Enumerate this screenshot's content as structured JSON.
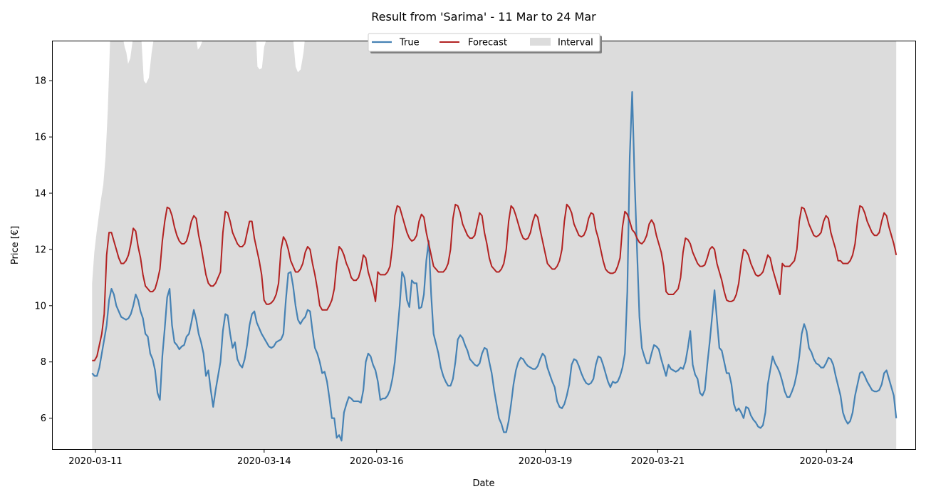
{
  "chart_data": {
    "type": "line",
    "title": "Result from 'Sarima' - 11 Mar to 24 Mar",
    "xlabel": "Date",
    "ylabel": "Price [€]",
    "x_tick_labels": [
      "2020-03-11",
      "2020-03-14",
      "2020-03-16",
      "2020-03-19",
      "2020-03-21",
      "2020-03-24"
    ],
    "y_ticks": [
      6,
      8,
      10,
      12,
      14,
      16,
      18
    ],
    "xlim_days": [
      10.24,
      25.58
    ],
    "x_start_day": 10.94,
    "x_step_days": 0.04167,
    "ylim": [
      4.9,
      19.4
    ],
    "grid": false,
    "legend": {
      "placement": "top-center",
      "entries": [
        "True",
        "Forecast",
        "Interval"
      ]
    },
    "colors": {
      "true": "#4682b4",
      "forecast": "#b22222",
      "interval": "#dcdcdc"
    },
    "series": [
      {
        "name": "True",
        "values": [
          7.6,
          7.5,
          7.5,
          7.8,
          8.3,
          8.8,
          9.3,
          10.2,
          10.6,
          10.4,
          10.0,
          9.8,
          9.6,
          9.55,
          9.5,
          9.55,
          9.7,
          10.0,
          10.4,
          10.2,
          9.8,
          9.55,
          9.0,
          8.9,
          8.3,
          8.1,
          7.7,
          6.9,
          6.65,
          8.2,
          9.2,
          10.3,
          10.6,
          9.3,
          8.7,
          8.6,
          8.45,
          8.55,
          8.6,
          8.9,
          9.0,
          9.4,
          9.85,
          9.5,
          9.0,
          8.7,
          8.3,
          7.5,
          7.7,
          7.0,
          6.4,
          7.0,
          7.5,
          8.0,
          9.1,
          9.7,
          9.65,
          9.0,
          8.5,
          8.7,
          8.1,
          7.9,
          7.8,
          8.1,
          8.6,
          9.3,
          9.7,
          9.8,
          9.4,
          9.2,
          9.0,
          8.85,
          8.7,
          8.55,
          8.5,
          8.55,
          8.7,
          8.75,
          8.8,
          9.0,
          10.2,
          11.15,
          11.2,
          10.7,
          10.0,
          9.5,
          9.35,
          9.5,
          9.6,
          9.85,
          9.8,
          9.1,
          8.5,
          8.3,
          8.0,
          7.6,
          7.65,
          7.3,
          6.7,
          6.0,
          6.0,
          5.3,
          5.4,
          5.2,
          6.2,
          6.5,
          6.75,
          6.7,
          6.6,
          6.6,
          6.6,
          6.55,
          7.0,
          8.0,
          8.3,
          8.2,
          7.9,
          7.7,
          7.3,
          6.65,
          6.7,
          6.7,
          6.8,
          7.0,
          7.4,
          8.0,
          9.0,
          10.0,
          11.2,
          11.0,
          10.2,
          9.95,
          10.9,
          10.8,
          10.8,
          9.9,
          9.95,
          10.4,
          11.6,
          12.3,
          10.4,
          9.0,
          8.65,
          8.3,
          7.8,
          7.5,
          7.3,
          7.15,
          7.15,
          7.4,
          8.0,
          8.8,
          8.95,
          8.85,
          8.6,
          8.4,
          8.1,
          8.0,
          7.9,
          7.85,
          7.95,
          8.3,
          8.5,
          8.45,
          8.0,
          7.6,
          7.0,
          6.5,
          6.0,
          5.8,
          5.5,
          5.5,
          5.9,
          6.5,
          7.2,
          7.7,
          8.0,
          8.15,
          8.1,
          7.95,
          7.85,
          7.8,
          7.75,
          7.75,
          7.85,
          8.1,
          8.3,
          8.2,
          7.8,
          7.55,
          7.3,
          7.1,
          6.6,
          6.4,
          6.35,
          6.5,
          6.8,
          7.2,
          7.9,
          8.1,
          8.05,
          7.85,
          7.6,
          7.4,
          7.25,
          7.2,
          7.25,
          7.4,
          7.9,
          8.2,
          8.15,
          7.9,
          7.6,
          7.3,
          7.1,
          7.3,
          7.25,
          7.3,
          7.5,
          7.8,
          8.3,
          10.5,
          15.3,
          17.6,
          14.5,
          12.0,
          9.6,
          8.5,
          8.2,
          7.95,
          7.95,
          8.3,
          8.6,
          8.55,
          8.45,
          8.1,
          7.8,
          7.5,
          7.9,
          7.75,
          7.7,
          7.65,
          7.7,
          7.8,
          7.75,
          8.0,
          8.5,
          9.1,
          7.9,
          7.55,
          7.4,
          6.9,
          6.8,
          7.0,
          7.9,
          8.7,
          9.6,
          10.55,
          9.5,
          8.5,
          8.4,
          8.0,
          7.6,
          7.6,
          7.2,
          6.5,
          6.25,
          6.35,
          6.2,
          6.0,
          6.4,
          6.35,
          6.1,
          5.95,
          5.85,
          5.7,
          5.65,
          5.75,
          6.2,
          7.2,
          7.7,
          8.2,
          7.95,
          7.8,
          7.6,
          7.3,
          6.95,
          6.75,
          6.75,
          6.95,
          7.2,
          7.6,
          8.2,
          9.0,
          9.35,
          9.1,
          8.5,
          8.35,
          8.1,
          7.95,
          7.9,
          7.8,
          7.8,
          7.95,
          8.15,
          8.1,
          7.9,
          7.5,
          7.15,
          6.8,
          6.2,
          5.95,
          5.8,
          5.9,
          6.2,
          6.8,
          7.2,
          7.6,
          7.65,
          7.5,
          7.3,
          7.15,
          7.0,
          6.95,
          6.95,
          7.0,
          7.2,
          7.6,
          7.7,
          7.4,
          7.1,
          6.8,
          6.0
        ]
      },
      {
        "name": "Forecast",
        "values": [
          8.05,
          8.05,
          8.2,
          8.6,
          9.0,
          9.7,
          11.8,
          12.6,
          12.6,
          12.3,
          12.0,
          11.7,
          11.5,
          11.5,
          11.6,
          11.8,
          12.2,
          12.75,
          12.65,
          12.1,
          11.7,
          11.1,
          10.7,
          10.6,
          10.5,
          10.5,
          10.6,
          10.9,
          11.3,
          12.3,
          13.0,
          13.5,
          13.45,
          13.2,
          12.8,
          12.5,
          12.3,
          12.2,
          12.2,
          12.3,
          12.6,
          13.0,
          13.2,
          13.1,
          12.5,
          12.1,
          11.6,
          11.1,
          10.8,
          10.7,
          10.7,
          10.8,
          11.0,
          11.2,
          12.6,
          13.35,
          13.3,
          13.0,
          12.6,
          12.4,
          12.2,
          12.1,
          12.1,
          12.2,
          12.6,
          13.0,
          13.0,
          12.4,
          12.0,
          11.6,
          11.1,
          10.2,
          10.05,
          10.05,
          10.1,
          10.2,
          10.4,
          10.8,
          12.0,
          12.45,
          12.3,
          12.0,
          11.6,
          11.4,
          11.2,
          11.2,
          11.3,
          11.5,
          11.9,
          12.1,
          12.0,
          11.5,
          11.1,
          10.6,
          10.0,
          9.85,
          9.85,
          9.85,
          10.0,
          10.2,
          10.6,
          11.5,
          12.1,
          12.0,
          11.8,
          11.5,
          11.3,
          11.0,
          10.9,
          10.9,
          11.0,
          11.3,
          11.8,
          11.7,
          11.2,
          10.9,
          10.6,
          10.15,
          11.2,
          11.1,
          11.1,
          11.1,
          11.2,
          11.4,
          12.1,
          13.2,
          13.55,
          13.5,
          13.2,
          12.9,
          12.6,
          12.4,
          12.3,
          12.35,
          12.5,
          13.0,
          13.25,
          13.15,
          12.6,
          12.2,
          11.8,
          11.4,
          11.3,
          11.2,
          11.2,
          11.2,
          11.3,
          11.5,
          12.0,
          13.1,
          13.6,
          13.55,
          13.3,
          12.9,
          12.7,
          12.5,
          12.4,
          12.4,
          12.5,
          12.9,
          13.3,
          13.2,
          12.6,
          12.2,
          11.7,
          11.4,
          11.3,
          11.2,
          11.2,
          11.3,
          11.5,
          12.0,
          13.0,
          13.55,
          13.45,
          13.2,
          12.9,
          12.6,
          12.4,
          12.35,
          12.4,
          12.6,
          13.0,
          13.25,
          13.15,
          12.7,
          12.3,
          11.9,
          11.5,
          11.4,
          11.3,
          11.3,
          11.4,
          11.6,
          12.0,
          13.0,
          13.6,
          13.5,
          13.3,
          12.9,
          12.7,
          12.5,
          12.45,
          12.5,
          12.7,
          13.1,
          13.3,
          13.25,
          12.7,
          12.4,
          12.0,
          11.6,
          11.3,
          11.2,
          11.15,
          11.15,
          11.2,
          11.4,
          11.7,
          12.8,
          13.35,
          13.25,
          13.0,
          12.7,
          12.6,
          12.4,
          12.25,
          12.2,
          12.3,
          12.5,
          12.9,
          13.05,
          12.9,
          12.5,
          12.2,
          11.9,
          11.4,
          10.5,
          10.4,
          10.4,
          10.4,
          10.5,
          10.6,
          11.0,
          11.9,
          12.4,
          12.35,
          12.2,
          11.9,
          11.7,
          11.5,
          11.4,
          11.4,
          11.45,
          11.7,
          12.0,
          12.1,
          12.0,
          11.5,
          11.2,
          10.9,
          10.5,
          10.2,
          10.15,
          10.15,
          10.2,
          10.4,
          10.8,
          11.5,
          12.0,
          11.95,
          11.8,
          11.5,
          11.3,
          11.1,
          11.05,
          11.1,
          11.2,
          11.5,
          11.8,
          11.7,
          11.3,
          11.0,
          10.7,
          10.4,
          11.5,
          11.4,
          11.4,
          11.4,
          11.5,
          11.6,
          12.0,
          13.0,
          13.5,
          13.45,
          13.2,
          12.9,
          12.7,
          12.5,
          12.45,
          12.5,
          12.6,
          13.0,
          13.2,
          13.1,
          12.6,
          12.3,
          12.0,
          11.6,
          11.6,
          11.5,
          11.5,
          11.5,
          11.6,
          11.8,
          12.2,
          13.0,
          13.55,
          13.5,
          13.3,
          13.0,
          12.8,
          12.6,
          12.5,
          12.5,
          12.6,
          13.0,
          13.3,
          13.2,
          12.8,
          12.5,
          12.2,
          11.8
        ]
      }
    ],
    "interval": {
      "name": "Interval",
      "lower": 4.9,
      "top_profile": [
        [
          10.94,
          10.8
        ],
        [
          10.98,
          11.9
        ],
        [
          11.02,
          12.6
        ],
        [
          11.06,
          13.2
        ],
        [
          11.1,
          13.8
        ],
        [
          11.14,
          14.3
        ],
        [
          11.18,
          15.3
        ],
        [
          11.22,
          17.0
        ],
        [
          11.26,
          19.4
        ],
        [
          11.5,
          19.4
        ],
        [
          11.52,
          19.2
        ],
        [
          11.55,
          19.0
        ],
        [
          11.58,
          18.6
        ],
        [
          11.62,
          18.8
        ],
        [
          11.66,
          19.4
        ],
        [
          11.82,
          19.4
        ],
        [
          11.86,
          18.0
        ],
        [
          11.9,
          17.9
        ],
        [
          11.95,
          18.1
        ],
        [
          12.0,
          19.0
        ],
        [
          12.03,
          19.4
        ],
        [
          12.8,
          19.4
        ],
        [
          12.82,
          19.1
        ],
        [
          12.86,
          19.2
        ],
        [
          12.9,
          19.4
        ],
        [
          13.86,
          19.4
        ],
        [
          13.88,
          18.5
        ],
        [
          13.92,
          18.4
        ],
        [
          13.96,
          18.45
        ],
        [
          14.0,
          19.2
        ],
        [
          14.03,
          19.4
        ],
        [
          14.52,
          19.4
        ],
        [
          14.56,
          18.5
        ],
        [
          14.6,
          18.3
        ],
        [
          14.65,
          18.4
        ],
        [
          14.7,
          19.0
        ],
        [
          14.72,
          19.4
        ],
        [
          25.24,
          19.4
        ]
      ],
      "x_end_day": 25.24
    }
  }
}
